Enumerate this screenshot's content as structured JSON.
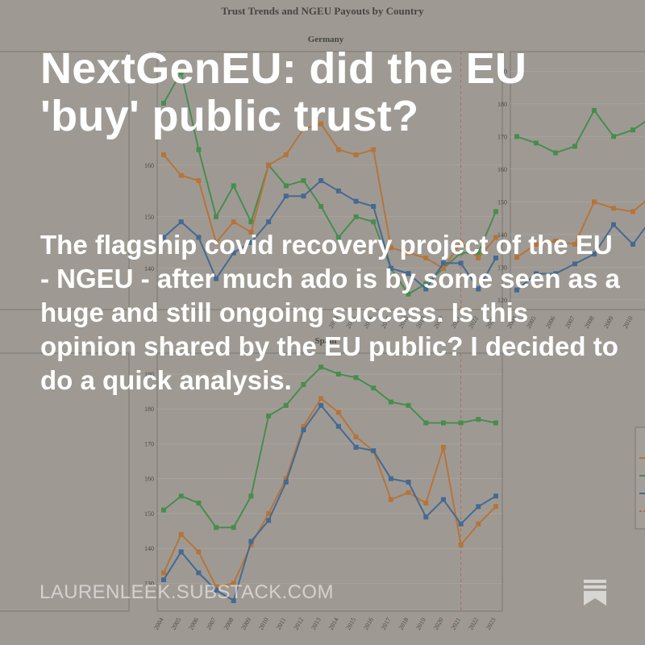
{
  "post": {
    "title": "NextGenEU: did the EU 'buy' public trust?",
    "subtitle": "The flagship covid recovery project of the EU - NGEU - after much ado is by some seen as a huge and still ongoing success. Is this opinion shared by the EU public? I decided to do a quick analysis.",
    "domain": "LAURENLEEK.SUBSTACK.COM",
    "bookmark_icon": "bookmark-icon"
  },
  "figure": {
    "title": "Trust Trends and NGEU Payouts by Country",
    "germany_title": "Germany",
    "spain_title": "Spain"
  },
  "colors": {
    "background": "#a19d96",
    "green": "#2e8a3c",
    "orange": "#c06a1f",
    "blue": "#2a5b94",
    "red_marker": "#b85b4e"
  },
  "chart_data": [
    {
      "type": "line",
      "title": "Germany",
      "x": [
        2004,
        2005,
        2006,
        2007,
        2008,
        2009,
        2010,
        2011,
        2012,
        2013,
        2014,
        2015,
        2016,
        2017,
        2018,
        2019,
        2020,
        2021,
        2022,
        2023
      ],
      "x_tick_labels": [
        "2014",
        "2015",
        "2016",
        "2017",
        "2018",
        "2019",
        "2020",
        "2021",
        "2022",
        "2023"
      ],
      "series": [
        {
          "color": "#2e8a3c",
          "values": [
            172,
            178,
            163,
            150,
            156,
            149,
            160,
            156,
            157,
            152,
            146,
            150,
            149,
            140,
            135,
            137,
            140,
            143,
            143,
            151
          ]
        },
        {
          "color": "#c06a1f",
          "values": [
            162,
            158,
            157,
            145,
            149,
            147,
            160,
            162,
            167,
            168,
            163,
            162,
            163,
            144,
            143,
            142,
            140,
            145,
            142,
            146
          ]
        },
        {
          "color": "#2a5b94",
          "values": [
            146,
            149,
            146,
            138,
            143,
            145,
            149,
            154,
            154,
            157,
            155,
            153,
            152,
            140,
            139,
            136,
            141,
            141,
            136,
            142
          ]
        }
      ],
      "y_ticks": [
        140,
        150,
        160
      ],
      "vline": 2021
    },
    {
      "type": "line",
      "title": "Spain",
      "x": [
        2004,
        2005,
        2006,
        2007,
        2008,
        2009,
        2010,
        2011,
        2012,
        2013,
        2014,
        2015,
        2016,
        2017,
        2018,
        2019,
        2020,
        2021,
        2022,
        2023
      ],
      "x_tick_labels": [
        "2004",
        "2005",
        "2006",
        "2007",
        "2008",
        "2009",
        "2010",
        "2011",
        "2012",
        "2013",
        "2014",
        "2015",
        "2016",
        "2017",
        "2018",
        "2019",
        "2020",
        "2021",
        "2022",
        "2023"
      ],
      "series": [
        {
          "color": "#2e8a3c",
          "values": [
            151,
            155,
            153,
            146,
            146,
            155,
            178,
            181,
            187,
            192,
            190,
            189,
            186,
            182,
            181,
            176,
            176,
            176,
            177,
            176
          ]
        },
        {
          "color": "#c06a1f",
          "values": [
            133,
            144,
            139,
            129,
            130,
            141,
            150,
            160,
            175,
            183,
            179,
            172,
            168,
            154,
            156,
            153,
            169,
            141,
            147,
            152
          ]
        },
        {
          "color": "#2a5b94",
          "values": [
            131,
            139,
            133,
            128,
            125,
            142,
            148,
            159,
            174,
            181,
            175,
            169,
            168,
            160,
            159,
            149,
            154,
            147,
            152,
            155
          ]
        }
      ],
      "y_ticks": [
        130,
        140,
        150,
        160,
        170,
        180,
        190
      ],
      "vline": 2021
    },
    {
      "type": "line",
      "title": "",
      "x": [
        2004,
        2005,
        2006,
        2007,
        2008,
        2009,
        2010,
        2011
      ],
      "x_tick_labels": [
        "2004",
        "2005",
        "2006",
        "2007",
        "2008",
        "2009",
        "2010"
      ],
      "series": [
        {
          "color": "#2e8a3c",
          "values": [
            170,
            168,
            165,
            167,
            178,
            170,
            172,
            176
          ]
        },
        {
          "color": "#c06a1f",
          "values": [
            133,
            137,
            138,
            137,
            150,
            148,
            147,
            152
          ]
        },
        {
          "color": "#2a5b94",
          "values": [
            123,
            128,
            128,
            131,
            134,
            143,
            137,
            145
          ]
        }
      ],
      "y_ticks": [
        120,
        130,
        140,
        150,
        160,
        170,
        180,
        190
      ]
    }
  ]
}
